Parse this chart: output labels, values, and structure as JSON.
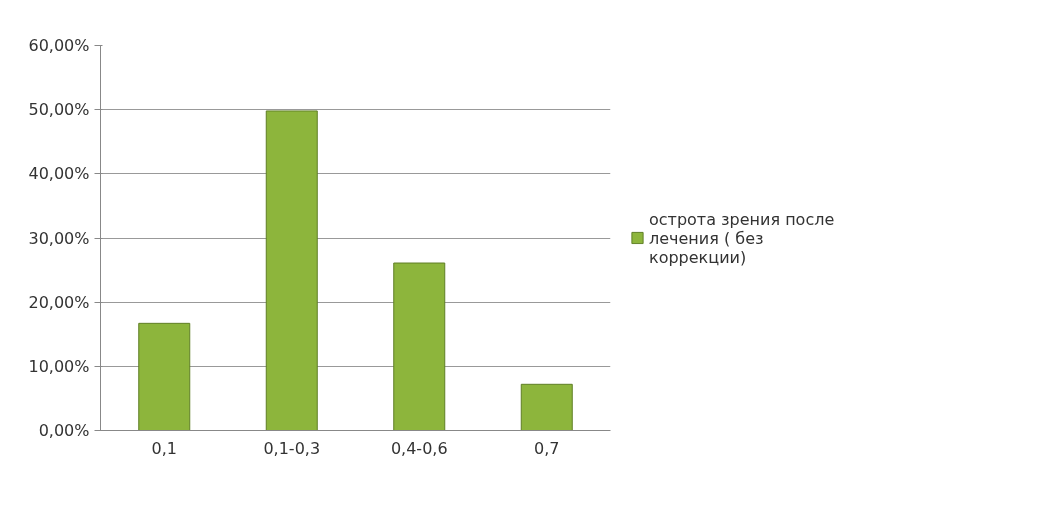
{
  "chart_data": {
    "type": "bar",
    "categories": [
      "0,1",
      "0,1-0,3",
      "0,4-0,6",
      "0,7"
    ],
    "series": [
      {
        "name": "острота зрения после лечения ( без коррекции)",
        "color": "#8db53c",
        "values": [
          16.7,
          49.8,
          26.1,
          7.2
        ]
      }
    ],
    "ylim": [
      0,
      60
    ],
    "yticks": [
      {
        "value": 0,
        "label": "0,00%"
      },
      {
        "value": 10,
        "label": "10,00%"
      },
      {
        "value": 20,
        "label": "20,00%"
      },
      {
        "value": 30,
        "label": "30,00%"
      },
      {
        "value": 40,
        "label": "40,00%"
      },
      {
        "value": 50,
        "label": "50,00%"
      },
      {
        "value": 60,
        "label": "60,00%"
      }
    ],
    "grid": "y",
    "legend": "right"
  }
}
